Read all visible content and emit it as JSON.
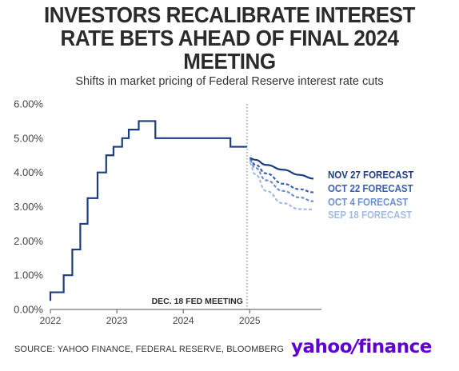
{
  "title": "INVESTORS RECALIBRATE INTEREST RATE BETS AHEAD OF FINAL 2024 MEETING",
  "subtitle": "Shifts in market pricing of Federal Reserve interest rate cuts",
  "source": "SOURCE: YAHOO FINANCE, FEDERAL RESERVE, BLOOMBERG",
  "brand": {
    "part1": "yahoo",
    "slash": "/",
    "part2": "finance"
  },
  "chart_data": {
    "type": "line",
    "title": "INVESTORS RECALIBRATE INTEREST RATE BETS AHEAD OF FINAL 2024 MEETING",
    "subtitle": "Shifts in market pricing of Federal Reserve interest rate cuts",
    "xlabel": "",
    "ylabel": "",
    "xlim": [
      2022.0,
      2026.08
    ],
    "ylim": [
      0,
      6
    ],
    "x_ticks": [
      2022,
      2023,
      2024,
      2025
    ],
    "x_tick_labels": [
      "2022",
      "2023",
      "2024",
      "2025"
    ],
    "y_ticks": [
      0,
      1,
      2,
      3,
      4,
      5,
      6
    ],
    "y_tick_labels": [
      "0.00%",
      "1.00%",
      "2.00%",
      "3.00%",
      "4.00%",
      "5.00%",
      "6.00%"
    ],
    "grid": false,
    "annotation": {
      "x": 2024.96,
      "label": "DEC. 18 FED MEETING"
    },
    "series": [
      {
        "name": "Fed funds rate",
        "style": "step",
        "color": "#1c3d7e",
        "x": [
          2022.0,
          2022.2,
          2022.33,
          2022.45,
          2022.56,
          2022.71,
          2022.84,
          2022.95,
          2023.08,
          2023.18,
          2023.33,
          2023.58,
          2024.71,
          2024.83,
          2024.92
        ],
        "y": [
          0.25,
          0.5,
          1.0,
          1.75,
          2.5,
          3.25,
          4.0,
          4.5,
          4.75,
          5.0,
          5.25,
          5.5,
          5.0,
          4.75,
          4.75
        ]
      },
      {
        "name": "NOV 27 FORECAST",
        "style": "solid",
        "color": "#1c3d7e",
        "x": [
          2025.0,
          2025.08,
          2025.25,
          2025.5,
          2025.75,
          2025.96
        ],
        "y": [
          4.42,
          4.37,
          4.22,
          4.08,
          3.93,
          3.82
        ]
      },
      {
        "name": "OCT 22 FORECAST",
        "style": "dashed",
        "color": "#3a5fb0",
        "x": [
          2025.0,
          2025.08,
          2025.25,
          2025.5,
          2025.75,
          2025.96
        ],
        "y": [
          4.4,
          4.23,
          3.97,
          3.67,
          3.51,
          3.42
        ]
      },
      {
        "name": "OCT 4 FORECAST",
        "style": "dashed",
        "color": "#6e8fcf",
        "x": [
          2025.0,
          2025.08,
          2025.25,
          2025.5,
          2025.75,
          2025.96
        ],
        "y": [
          4.35,
          4.14,
          3.77,
          3.46,
          3.27,
          3.16
        ]
      },
      {
        "name": "SEP 18 FORECAST",
        "style": "dashed",
        "color": "#a4bbe3",
        "x": [
          2025.0,
          2025.08,
          2025.25,
          2025.5,
          2025.75,
          2025.96
        ],
        "y": [
          4.28,
          3.95,
          3.46,
          3.1,
          2.93,
          2.92
        ]
      }
    ],
    "legend_placement": "right"
  }
}
